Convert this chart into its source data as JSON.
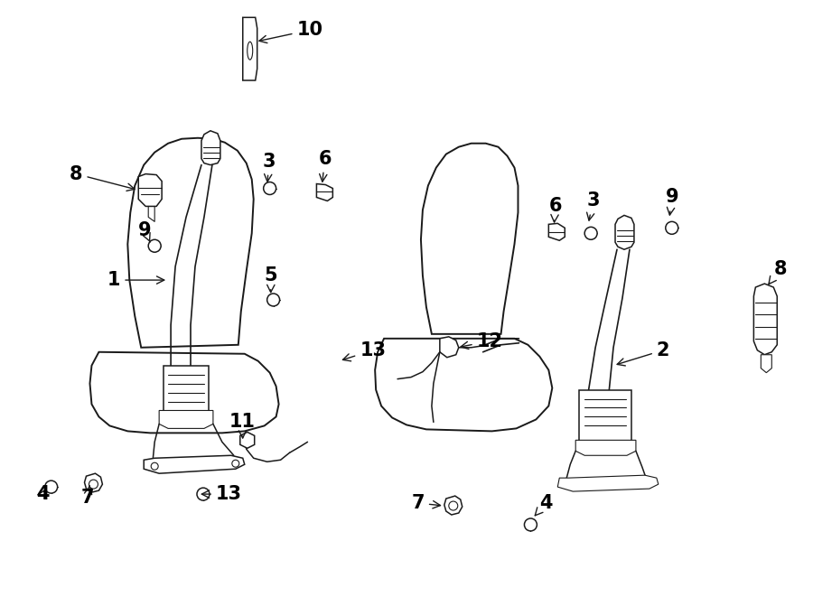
{
  "bg_color": "#ffffff",
  "line_color": "#1a1a1a",
  "figure_width": 9.0,
  "figure_height": 6.61,
  "dpi": 100,
  "border_color": "#333333",
  "label_fontsize": 13,
  "label_fontsize_large": 15,
  "lw_seat": 1.4,
  "lw_belt": 1.2,
  "lw_part": 1.1,
  "lw_thin": 0.8
}
